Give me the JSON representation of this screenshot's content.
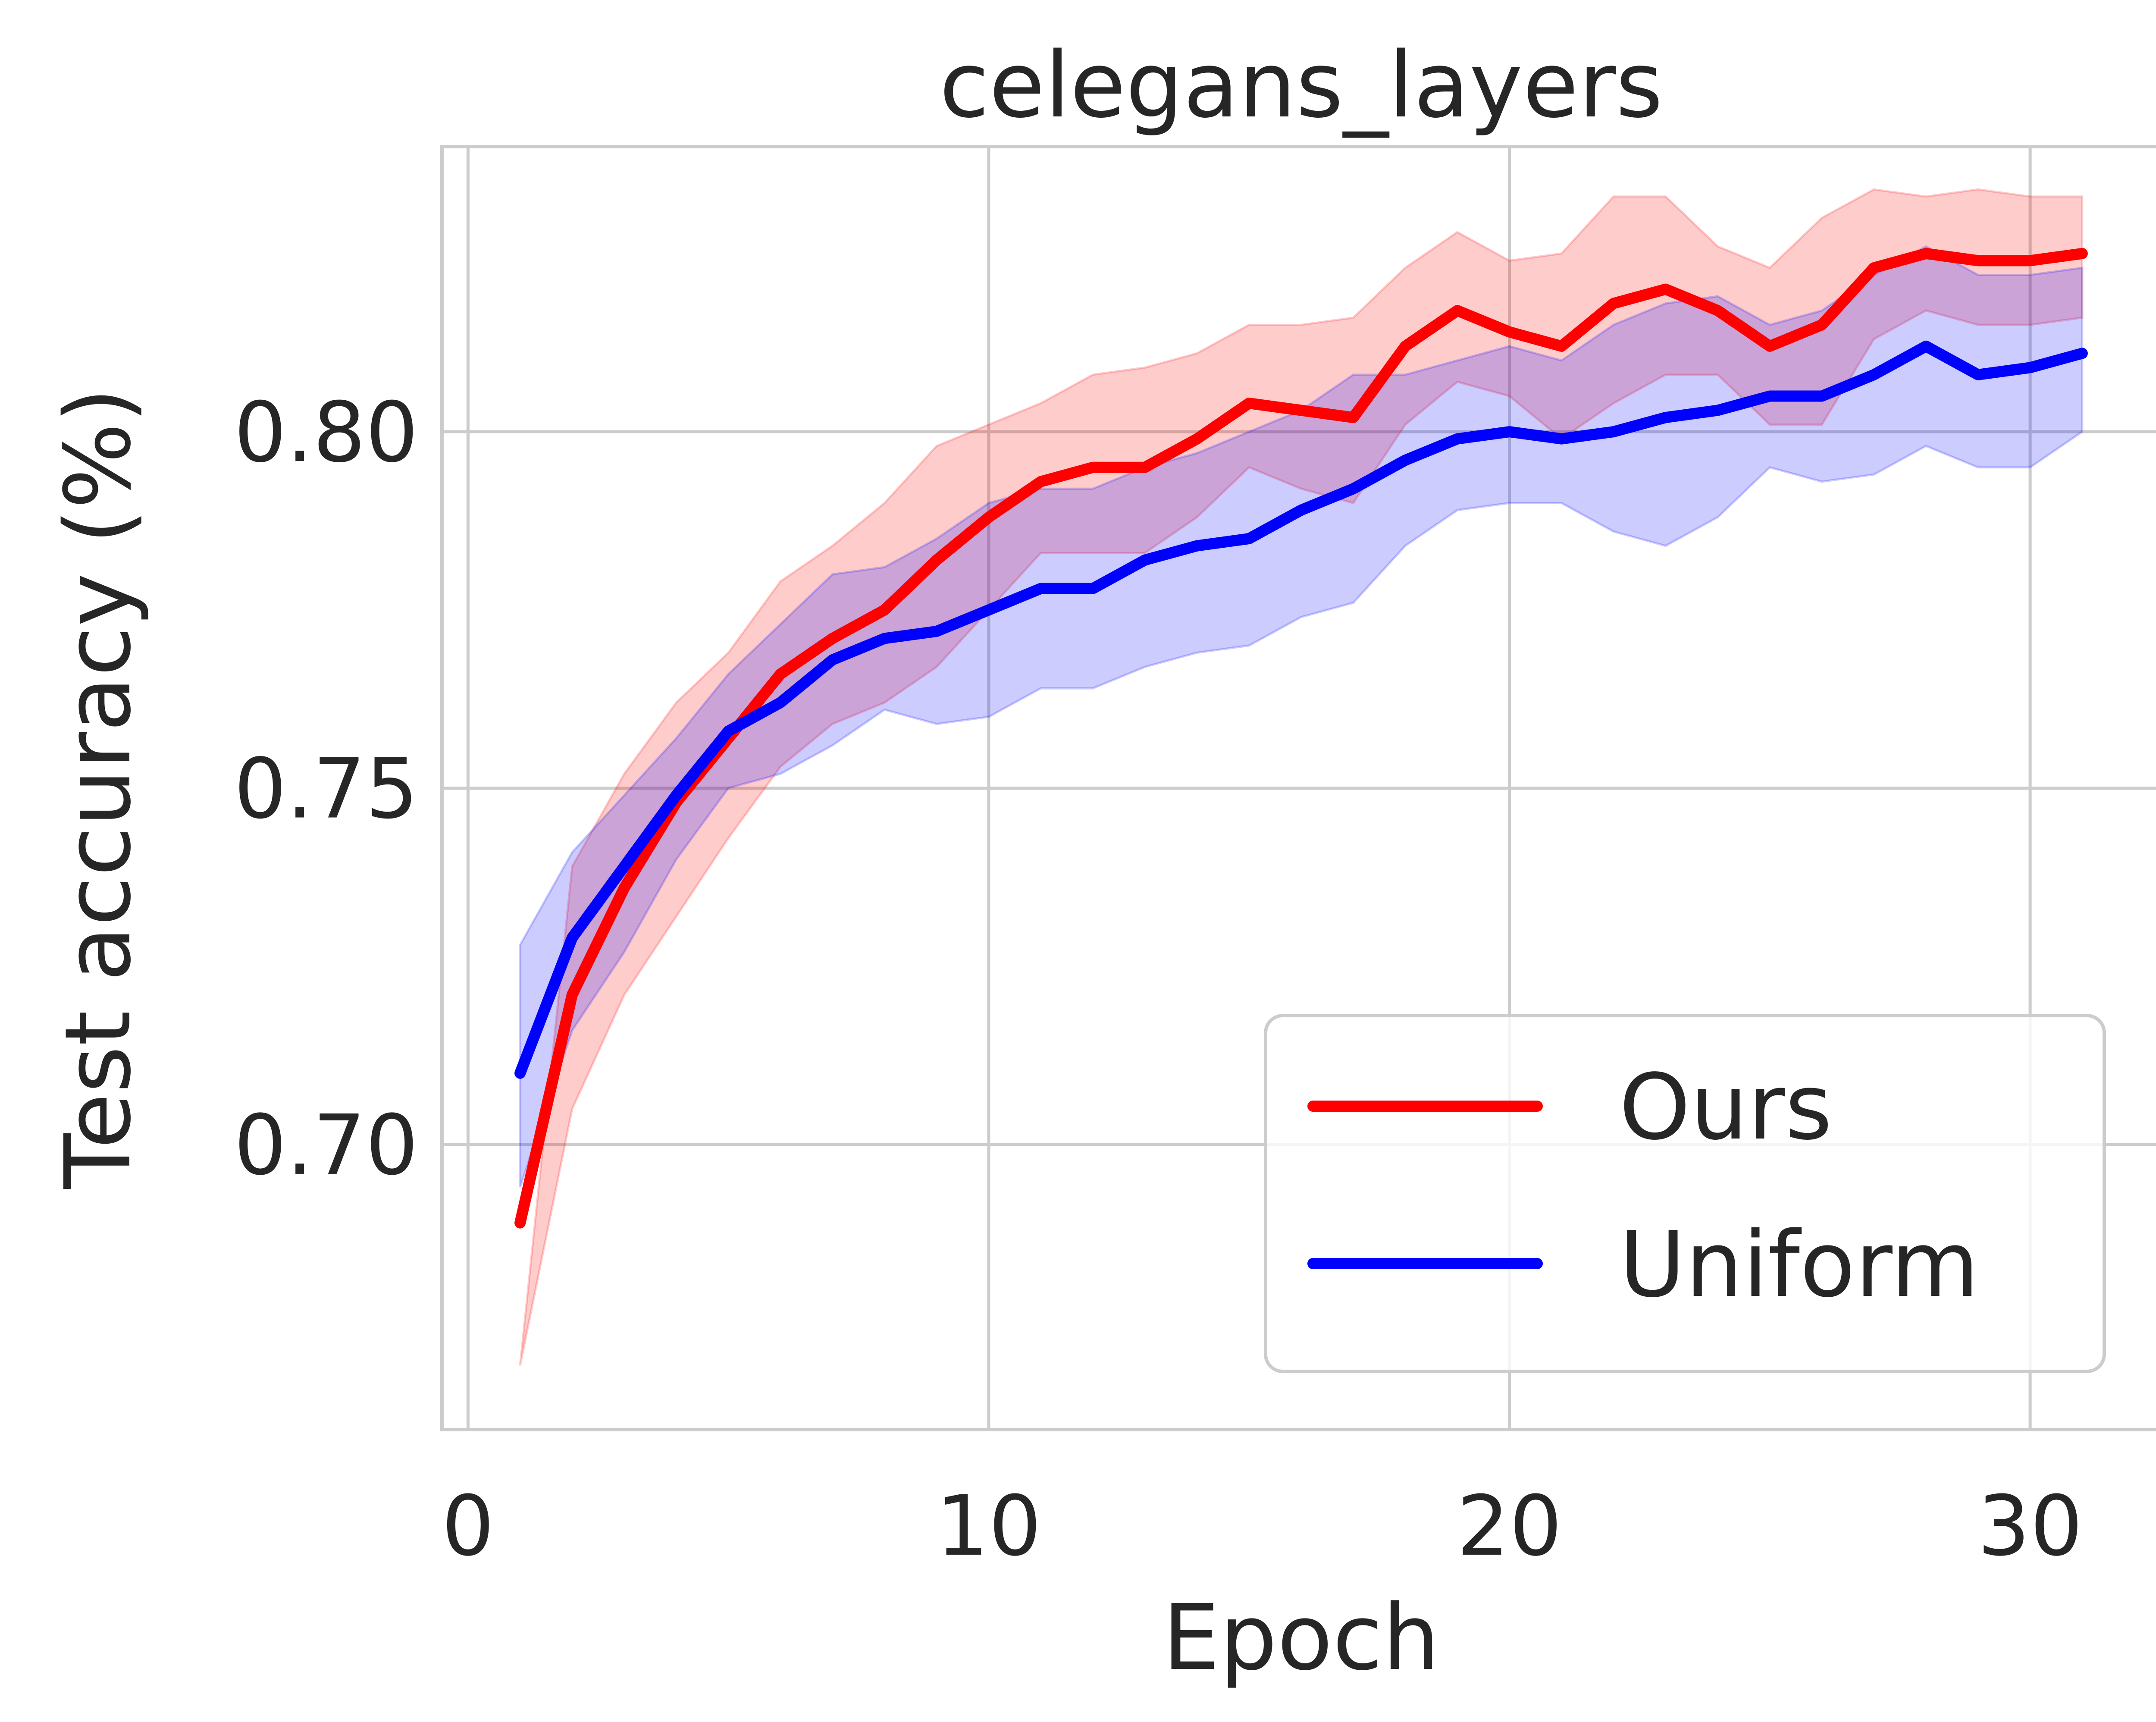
{
  "chart_data": {
    "type": "line",
    "title": "celegans_layers",
    "xlabel": "Epoch",
    "ylabel": "Test accuracy (%)",
    "xlim": [
      -0.5,
      32.5
    ],
    "ylim": [
      0.66,
      0.84
    ],
    "xticks": [
      0,
      10,
      20,
      30
    ],
    "xtick_labels": [
      "0",
      "10",
      "20",
      "30"
    ],
    "yticks": [
      0.7,
      0.75,
      0.8
    ],
    "ytick_labels": [
      "0.70",
      "0.75",
      "0.80"
    ],
    "grid": true,
    "legend_position": "lower-right",
    "x": [
      1,
      2,
      3,
      4,
      5,
      6,
      7,
      8,
      9,
      10,
      11,
      12,
      13,
      14,
      15,
      16,
      17,
      18,
      19,
      20,
      21,
      22,
      23,
      24,
      25,
      26,
      27,
      28,
      29,
      30,
      31
    ],
    "series": [
      {
        "name": "Ours",
        "color": "#ff0000",
        "values": [
          0.689,
          0.721,
          0.736,
          0.748,
          0.757,
          0.766,
          0.771,
          0.775,
          0.782,
          0.788,
          0.793,
          0.795,
          0.795,
          0.799,
          0.804,
          0.803,
          0.802,
          0.812,
          0.817,
          0.814,
          0.812,
          0.818,
          0.82,
          0.817,
          0.812,
          0.815,
          0.823,
          0.825,
          0.824,
          0.824,
          0.825
        ],
        "upper": [
          0.669,
          0.739,
          0.752,
          0.762,
          0.769,
          0.779,
          0.784,
          0.79,
          0.798,
          0.801,
          0.804,
          0.808,
          0.809,
          0.811,
          0.815,
          0.815,
          0.816,
          0.823,
          0.828,
          0.824,
          0.825,
          0.833,
          0.833,
          0.826,
          0.823,
          0.83,
          0.834,
          0.833,
          0.834,
          0.833,
          0.833
        ],
        "lower": [
          0.669,
          0.705,
          0.721,
          0.732,
          0.743,
          0.753,
          0.759,
          0.762,
          0.767,
          0.775,
          0.783,
          0.783,
          0.783,
          0.788,
          0.795,
          0.792,
          0.79,
          0.801,
          0.807,
          0.805,
          0.799,
          0.804,
          0.808,
          0.808,
          0.801,
          0.801,
          0.813,
          0.817,
          0.815,
          0.815,
          0.816
        ]
      },
      {
        "name": "Uniform",
        "color": "#0000ff",
        "values": [
          0.71,
          0.729,
          0.739,
          0.749,
          0.758,
          0.762,
          0.768,
          0.771,
          0.772,
          0.775,
          0.778,
          0.778,
          0.782,
          0.784,
          0.785,
          0.789,
          0.792,
          0.796,
          0.799,
          0.8,
          0.799,
          0.8,
          0.802,
          0.803,
          0.805,
          0.805,
          0.808,
          0.812,
          0.808,
          0.809,
          0.811
        ],
        "upper": [
          0.728,
          0.741,
          0.749,
          0.757,
          0.766,
          0.773,
          0.78,
          0.781,
          0.785,
          0.79,
          0.792,
          0.792,
          0.795,
          0.797,
          0.8,
          0.803,
          0.808,
          0.808,
          0.81,
          0.812,
          0.81,
          0.815,
          0.818,
          0.819,
          0.815,
          0.817,
          0.822,
          0.826,
          0.822,
          0.822,
          0.823
        ],
        "lower": [
          0.694,
          0.716,
          0.727,
          0.74,
          0.75,
          0.752,
          0.756,
          0.761,
          0.759,
          0.76,
          0.764,
          0.764,
          0.767,
          0.769,
          0.77,
          0.774,
          0.776,
          0.784,
          0.789,
          0.79,
          0.79,
          0.786,
          0.784,
          0.788,
          0.795,
          0.793,
          0.794,
          0.798,
          0.795,
          0.795,
          0.8
        ]
      }
    ]
  }
}
